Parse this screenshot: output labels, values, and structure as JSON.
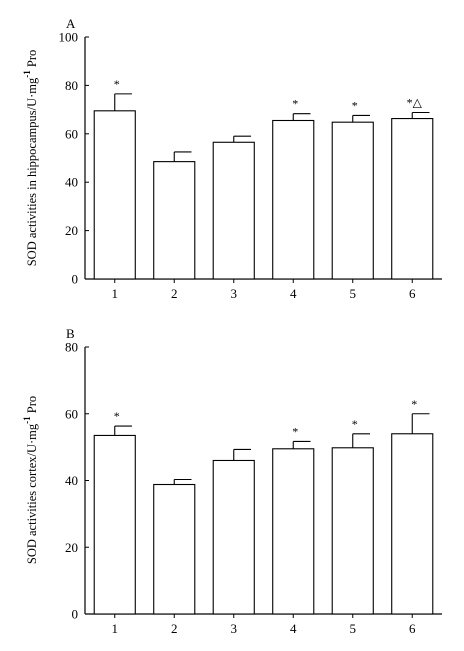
{
  "chart_data": [
    {
      "type": "bar",
      "panel_label": "A",
      "categories": [
        "1",
        "2",
        "3",
        "4",
        "5",
        "6"
      ],
      "values": [
        69.5,
        48.5,
        56.5,
        65.5,
        64.8,
        66.3
      ],
      "errors": [
        7.0,
        4.0,
        2.5,
        2.8,
        2.8,
        2.5
      ],
      "annotations": [
        "*",
        "",
        "",
        "*",
        "*",
        "*△"
      ],
      "ylabel": "SOD activities in hippocampus/U·mg",
      "ylabel_sup": "-1",
      "ylabel_suffix": " Pro",
      "ylim": [
        0,
        100
      ],
      "yticks": [
        "0",
        "20",
        "40",
        "60",
        "80",
        "100"
      ],
      "grid": false,
      "bar_color": "#ffffff",
      "edge_color": "#000000"
    },
    {
      "type": "bar",
      "panel_label": "B",
      "categories": [
        "1",
        "2",
        "3",
        "4",
        "5",
        "6"
      ],
      "values": [
        53.5,
        38.8,
        46.0,
        49.5,
        49.8,
        54.0
      ],
      "errors": [
        2.8,
        1.5,
        3.3,
        2.2,
        4.2,
        6.0
      ],
      "annotations": [
        "*",
        "",
        "",
        "*",
        "*",
        "*"
      ],
      "ylabel": "SOD activities cortex/U·mg",
      "ylabel_sup": "-1",
      "ylabel_suffix": " Pro",
      "ylim": [
        0,
        80
      ],
      "yticks": [
        "0",
        "20",
        "40",
        "60",
        "80"
      ],
      "grid": false,
      "bar_color": "#ffffff",
      "edge_color": "#000000"
    }
  ]
}
